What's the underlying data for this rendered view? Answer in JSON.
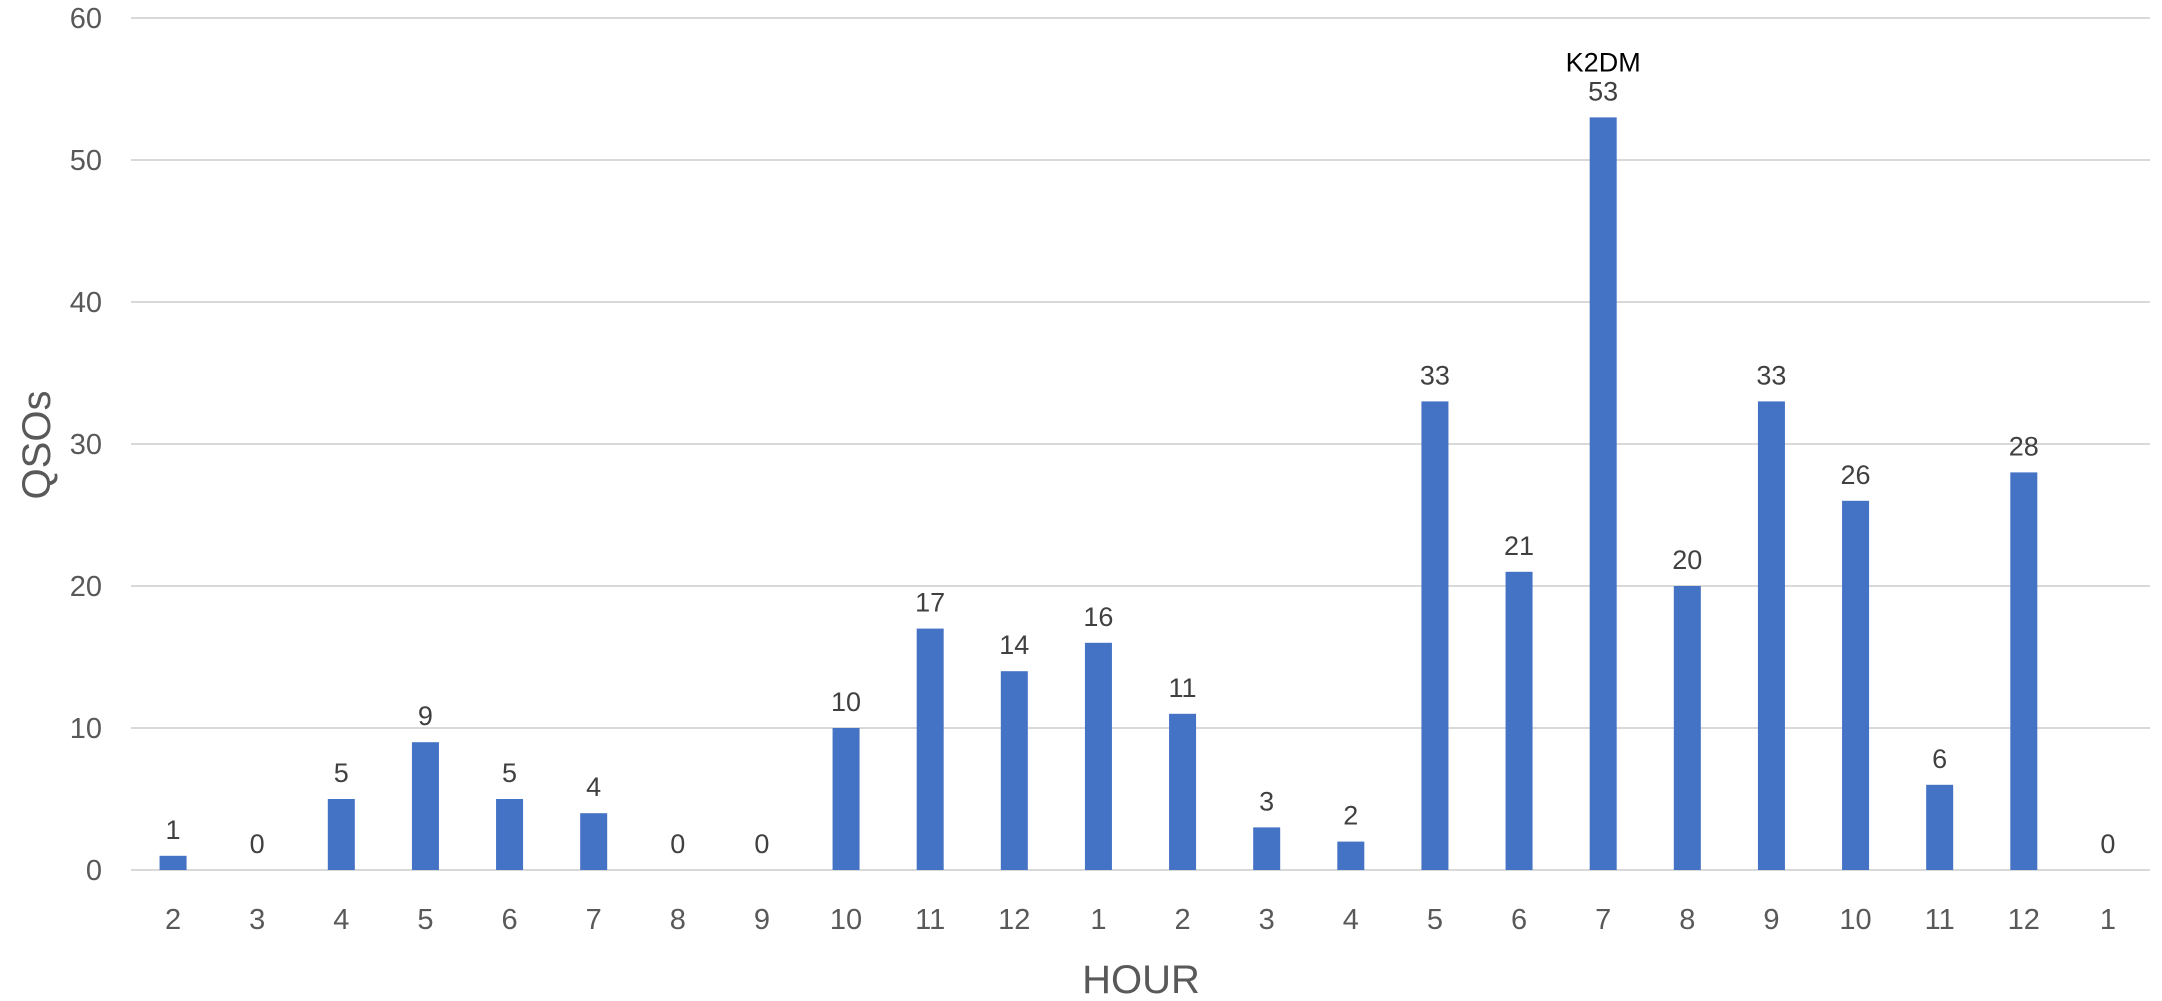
{
  "chart_data": {
    "type": "bar",
    "title": "",
    "xlabel": "HOUR",
    "ylabel": "QSOs",
    "categories": [
      "2",
      "3",
      "4",
      "5",
      "6",
      "7",
      "8",
      "9",
      "10",
      "11",
      "12",
      "1",
      "2",
      "3",
      "4",
      "5",
      "6",
      "7",
      "8",
      "9",
      "10",
      "11",
      "12",
      "1"
    ],
    "values": [
      1,
      0,
      5,
      9,
      5,
      4,
      0,
      0,
      10,
      17,
      14,
      16,
      11,
      3,
      2,
      33,
      21,
      53,
      20,
      33,
      26,
      6,
      28,
      0
    ],
    "ylim": [
      0,
      60
    ],
    "yticks": [
      0,
      10,
      20,
      30,
      40,
      50,
      60
    ],
    "grid": true,
    "legend": "none",
    "bar_color": "#4472C4",
    "annotations": [
      {
        "text": "K2DM",
        "category_index": 17
      }
    ]
  }
}
